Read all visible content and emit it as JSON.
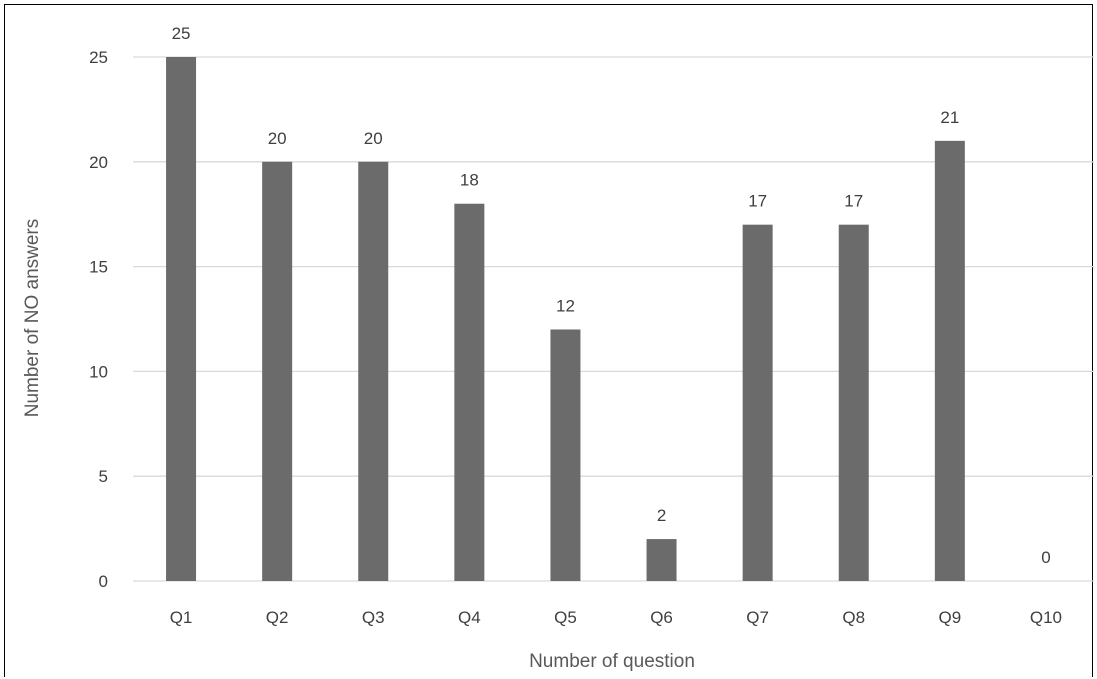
{
  "chart_data": {
    "type": "bar",
    "title": "",
    "xlabel": "Number of question",
    "ylabel": "Number of NO answers",
    "categories": [
      "Q1",
      "Q2",
      "Q3",
      "Q4",
      "Q5",
      "Q6",
      "Q7",
      "Q8",
      "Q9",
      "Q10"
    ],
    "values": [
      25,
      20,
      20,
      18,
      12,
      2,
      17,
      17,
      21,
      0
    ],
    "data_labels": [
      "25",
      "20",
      "20",
      "18",
      "12",
      "2",
      "17",
      "17",
      "21",
      "0"
    ],
    "ylim": [
      0,
      25
    ],
    "yticks": [
      0,
      5,
      10,
      15,
      20,
      25
    ],
    "grid": true,
    "legend": "none",
    "bar_color": "#6b6b6b",
    "grid_color": "#d9d9d9"
  }
}
